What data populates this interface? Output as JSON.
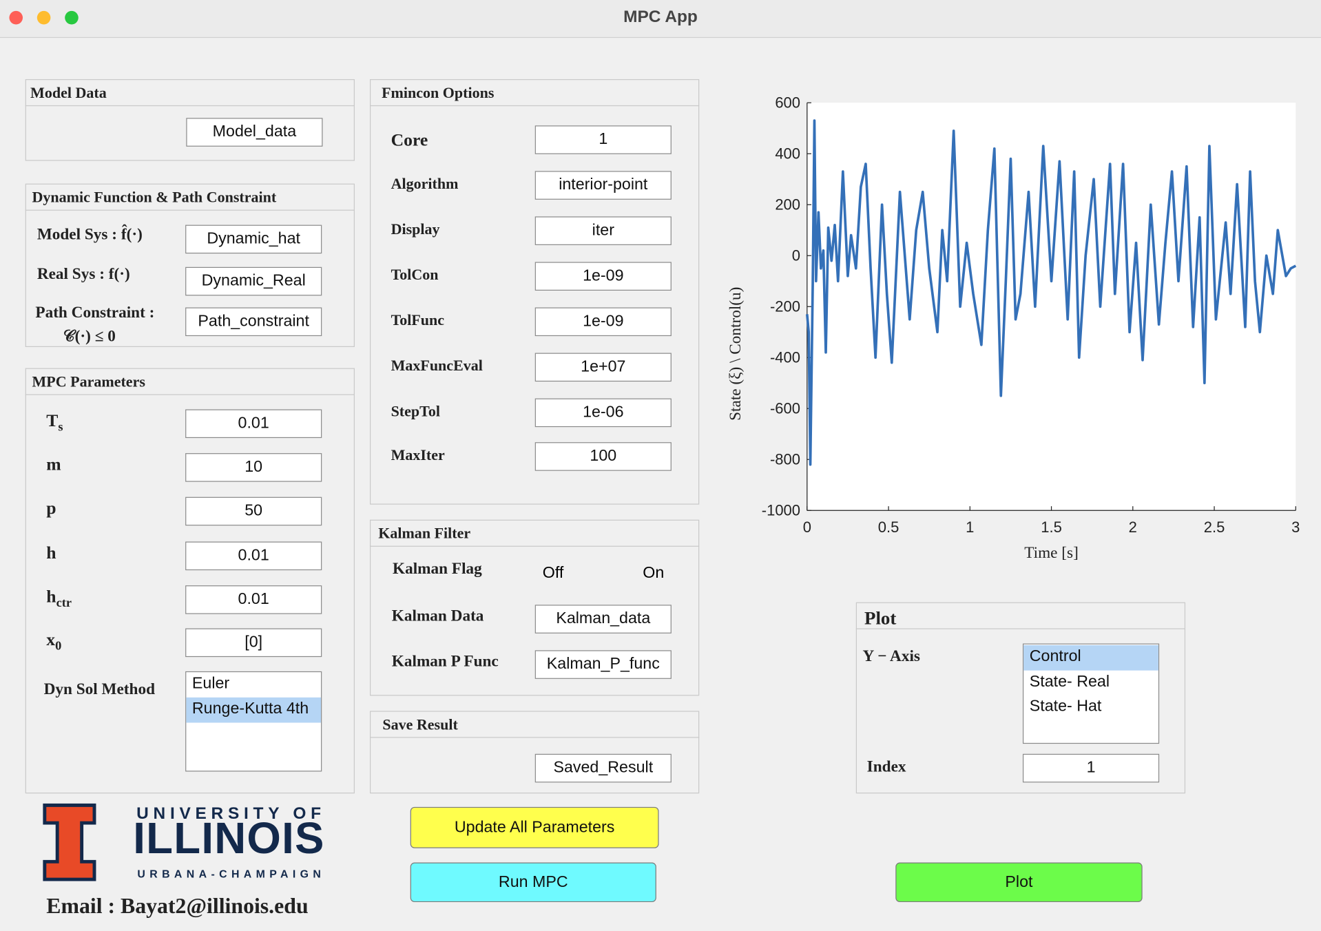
{
  "window": {
    "title": "MPC App"
  },
  "model_data": {
    "title": "Model Data",
    "value": "Model_data"
  },
  "dynamic": {
    "title": "Dynamic Function & Path Constraint",
    "rows": [
      {
        "label": "Model Sys : f̂(·)",
        "value": "Dynamic_hat"
      },
      {
        "label": "Real Sys : f(·)",
        "value": "Dynamic_Real"
      },
      {
        "label": "Path Constraint :",
        "label2": "𝒞(·) ≤ 0",
        "value": "Path_constraint"
      }
    ]
  },
  "mpc": {
    "title": "MPC Parameters",
    "rows": [
      {
        "label": "T",
        "sub": "s",
        "value": "0.01"
      },
      {
        "label": "m",
        "value": "10"
      },
      {
        "label": "p",
        "value": "50"
      },
      {
        "label": "h",
        "value": "0.01"
      },
      {
        "label": "h",
        "sub": "ctr",
        "value": "0.01"
      },
      {
        "label": "x",
        "sub": "0",
        "value": "[0]"
      }
    ],
    "method": {
      "label": "Dyn Sol Method",
      "options": [
        "Euler",
        "Runge-Kutta 4th"
      ],
      "selected": 1
    }
  },
  "fmincon": {
    "title": "Fmincon Options",
    "rows": [
      {
        "label": "Core",
        "value": "1"
      },
      {
        "label": "Algorithm",
        "value": "interior-point"
      },
      {
        "label": "Display",
        "value": "iter"
      },
      {
        "label": "TolCon",
        "value": "1e-09"
      },
      {
        "label": "TolFunc",
        "value": "1e-09"
      },
      {
        "label": "MaxFuncEval",
        "value": "1e+07"
      },
      {
        "label": "StepTol",
        "value": "1e-06"
      },
      {
        "label": "MaxIter",
        "value": "100"
      }
    ]
  },
  "kalman": {
    "title": "Kalman Filter",
    "flag": {
      "label": "Kalman Flag",
      "off": "Off",
      "on": "On"
    },
    "rows": [
      {
        "label": "Kalman Data",
        "value": "Kalman_data"
      },
      {
        "label": "Kalman P Func",
        "value": "Kalman_P_func"
      }
    ]
  },
  "save": {
    "title": "Save Result",
    "value": "Saved_Result"
  },
  "logo": {
    "line1": "UNIVERSITY OF",
    "line2": "ILLINOIS",
    "line3": "URBANA-CHAMPAIGN"
  },
  "email": "Email : Bayat2@illinois.edu",
  "buttons": {
    "update": "Update All Parameters",
    "run": "Run MPC"
  },
  "plot_panel": {
    "title": "Plot",
    "y_axis": "Y − Axis",
    "options": [
      "Control",
      "State- Real",
      "State- Hat"
    ],
    "selected": 0,
    "index_label": "Index",
    "index": "1",
    "button": "Plot"
  },
  "chart_data": {
    "type": "line",
    "x_label": "Time [s]",
    "y_label": "State (ξ) \\ Control(u)",
    "color": "#3470b8",
    "x": [
      0,
      0.01,
      0.02,
      0.035,
      0.045,
      0.055,
      0.07,
      0.085,
      0.1,
      0.115,
      0.13,
      0.15,
      0.17,
      0.19,
      0.22,
      0.25,
      0.27,
      0.3,
      0.33,
      0.36,
      0.39,
      0.42,
      0.46,
      0.49,
      0.52,
      0.57,
      0.6,
      0.63,
      0.67,
      0.71,
      0.75,
      0.8,
      0.83,
      0.86,
      0.9,
      0.94,
      0.98,
      1.02,
      1.07,
      1.11,
      1.15,
      1.19,
      1.22,
      1.25,
      1.28,
      1.31,
      1.36,
      1.4,
      1.45,
      1.5,
      1.55,
      1.6,
      1.64,
      1.67,
      1.71,
      1.76,
      1.8,
      1.86,
      1.89,
      1.94,
      1.98,
      2.02,
      2.06,
      2.11,
      2.16,
      2.2,
      2.24,
      2.28,
      2.33,
      2.37,
      2.41,
      2.44,
      2.47,
      2.51,
      2.57,
      2.6,
      2.64,
      2.69,
      2.72,
      2.75,
      2.78,
      2.82,
      2.86,
      2.89,
      2.94,
      2.97,
      3
    ],
    "values": [
      -230,
      -300,
      -820,
      -100,
      530,
      -100,
      170,
      -50,
      20,
      -380,
      110,
      -20,
      120,
      -100,
      330,
      -80,
      80,
      -50,
      270,
      360,
      -50,
      -400,
      200,
      -150,
      -420,
      250,
      0,
      -250,
      100,
      250,
      -50,
      -300,
      100,
      -100,
      490,
      -200,
      50,
      -150,
      -350,
      100,
      420,
      -550,
      -100,
      380,
      -250,
      -150,
      250,
      -200,
      430,
      -100,
      370,
      -250,
      330,
      -400,
      0,
      300,
      -200,
      360,
      -150,
      360,
      -300,
      50,
      -410,
      200,
      -270,
      50,
      330,
      -100,
      350,
      -280,
      150,
      -500,
      430,
      -250,
      130,
      -150,
      280,
      -280,
      330,
      -100,
      -300,
      0,
      -150,
      100,
      -80,
      -50,
      -40
    ],
    "xlim": [
      0,
      3
    ],
    "xticks": [
      0,
      0.5,
      1,
      1.5,
      2,
      2.5,
      3
    ],
    "ylim": [
      -1000,
      600
    ],
    "yticks": [
      -1000,
      -800,
      -600,
      -400,
      -200,
      0,
      200,
      400,
      600
    ]
  }
}
